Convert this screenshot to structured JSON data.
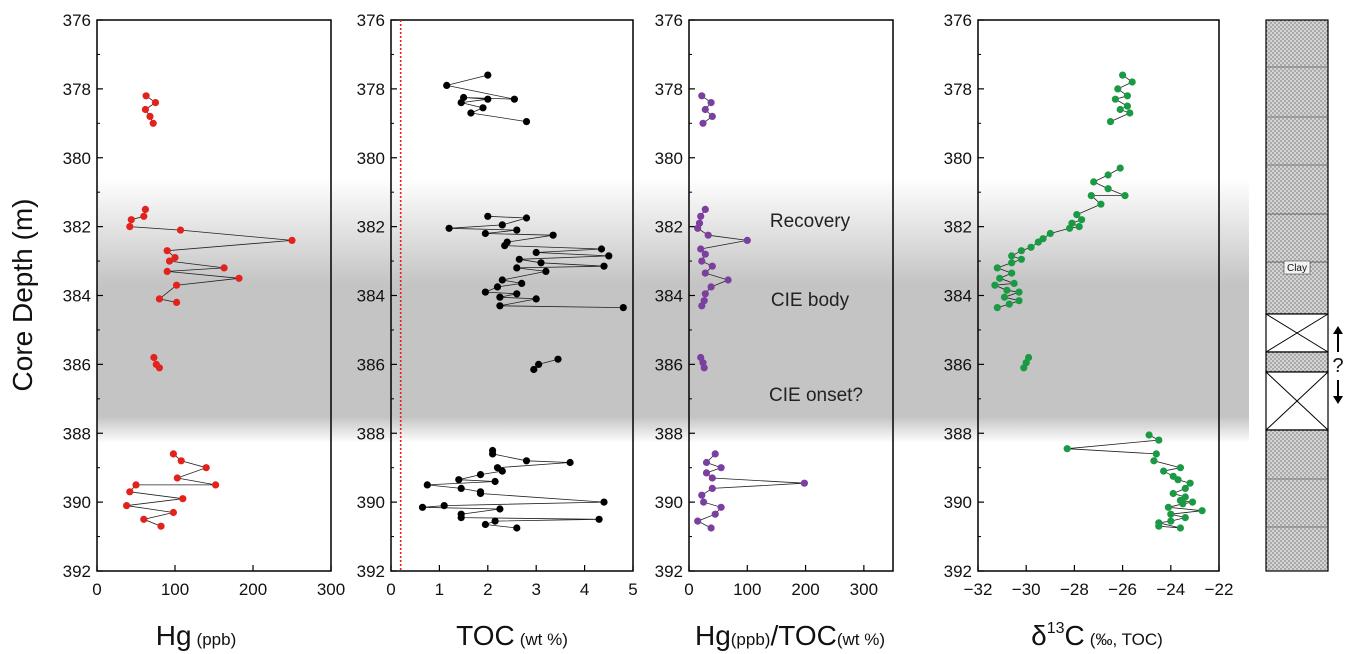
{
  "y_axis_label": "Core Depth (m)",
  "annotations": {
    "recovery": "Recovery",
    "cie_body": "CIE body",
    "cie_onset": "CIE onset?"
  },
  "lithology": {
    "clay_label": "Clay",
    "gap_label": "?"
  },
  "colors": {
    "hg": "#e3221c",
    "toc": "#000000",
    "ratio": "#7b3fa0",
    "d13c": "#1a9a44",
    "toc_reference_line": "#e3221c",
    "cie_shading": "#c4c4c4"
  },
  "chart_data": [
    {
      "type": "line",
      "xlabel_main": "Hg",
      "xlabel_unit": "(ppb)",
      "xlim": [
        0,
        300
      ],
      "ylim": [
        392,
        376
      ],
      "xticks": [
        0,
        100,
        200,
        300
      ],
      "yticks": [
        376,
        378,
        380,
        382,
        384,
        386,
        388,
        390,
        392
      ],
      "color": "#e3221c",
      "series": [
        {
          "points": [
            [
              63,
              378.2
            ],
            [
              75,
              378.4
            ],
            [
              62,
              378.6
            ],
            [
              68,
              378.8
            ],
            [
              72,
              379.0
            ]
          ]
        },
        {
          "points": [
            [
              62,
              381.5
            ],
            [
              60,
              381.7
            ],
            [
              44,
              381.8
            ],
            [
              42,
              382.0
            ],
            [
              107,
              382.1
            ],
            [
              250,
              382.4
            ],
            [
              90,
              382.7
            ],
            [
              100,
              382.9
            ],
            [
              93,
              383.0
            ],
            [
              163,
              383.2
            ],
            [
              90,
              383.3
            ],
            [
              182,
              383.5
            ],
            [
              102,
              383.7
            ],
            [
              80,
              384.1
            ],
            [
              102,
              384.2
            ]
          ]
        },
        {
          "points": [
            [
              73,
              385.8
            ],
            [
              76,
              386.0
            ],
            [
              80,
              386.1
            ]
          ]
        },
        {
          "points": [
            [
              98,
              388.6
            ],
            [
              108,
              388.8
            ],
            [
              140,
              389.0
            ],
            [
              103,
              389.3
            ],
            [
              152,
              389.5
            ],
            [
              50,
              389.5
            ],
            [
              42,
              389.7
            ],
            [
              110,
              389.9
            ],
            [
              38,
              390.1
            ],
            [
              98,
              390.3
            ],
            [
              60,
              390.5
            ],
            [
              82,
              390.7
            ]
          ]
        }
      ]
    },
    {
      "type": "line",
      "xlabel_main": "TOC",
      "xlabel_unit": "(wt %)",
      "xlim": [
        0,
        5
      ],
      "ylim": [
        392,
        376
      ],
      "xticks": [
        0,
        1,
        2,
        3,
        4,
        5
      ],
      "yticks": [
        376,
        378,
        380,
        382,
        384,
        386,
        388,
        390,
        392
      ],
      "color": "#000000",
      "reference_line_x": 0.2,
      "series": [
        {
          "points": [
            [
              2.0,
              377.6
            ],
            [
              1.15,
              377.9
            ],
            [
              2.55,
              378.3
            ],
            [
              1.5,
              378.25
            ],
            [
              2.0,
              378.3
            ],
            [
              1.45,
              378.4
            ],
            [
              1.9,
              378.55
            ],
            [
              1.65,
              378.7
            ],
            [
              2.8,
              378.95
            ]
          ]
        },
        {
          "points": [
            [
              2.0,
              381.7
            ],
            [
              2.8,
              381.75
            ],
            [
              2.3,
              381.95
            ],
            [
              1.2,
              382.05
            ],
            [
              2.6,
              382.1
            ],
            [
              1.95,
              382.2
            ],
            [
              3.35,
              382.25
            ],
            [
              2.4,
              382.45
            ],
            [
              2.35,
              382.55
            ],
            [
              4.35,
              382.65
            ],
            [
              3.0,
              382.75
            ],
            [
              4.5,
              382.85
            ],
            [
              2.65,
              382.95
            ],
            [
              3.1,
              383.05
            ],
            [
              4.4,
              383.15
            ],
            [
              2.6,
              383.2
            ],
            [
              3.2,
              383.3
            ],
            [
              2.3,
              383.55
            ],
            [
              2.7,
              383.65
            ],
            [
              2.2,
              383.75
            ],
            [
              1.95,
              383.9
            ],
            [
              2.6,
              383.95
            ],
            [
              2.25,
              384.05
            ],
            [
              3.0,
              384.1
            ],
            [
              2.25,
              384.3
            ],
            [
              4.8,
              384.35
            ]
          ]
        },
        {
          "points": [
            [
              3.45,
              385.85
            ],
            [
              3.05,
              386.0
            ],
            [
              2.95,
              386.15
            ]
          ]
        },
        {
          "points": [
            [
              2.1,
              388.5
            ],
            [
              2.1,
              388.6
            ],
            [
              2.8,
              388.8
            ],
            [
              3.7,
              388.85
            ],
            [
              2.2,
              389.0
            ],
            [
              2.3,
              389.1
            ],
            [
              1.85,
              389.2
            ],
            [
              1.4,
              389.35
            ],
            [
              2.15,
              389.4
            ],
            [
              0.75,
              389.5
            ],
            [
              1.45,
              389.6
            ],
            [
              1.85,
              389.7
            ],
            [
              1.85,
              389.75
            ],
            [
              4.4,
              390.0
            ],
            [
              1.1,
              390.1
            ],
            [
              0.65,
              390.15
            ],
            [
              2.25,
              390.2
            ],
            [
              1.45,
              390.35
            ],
            [
              1.45,
              390.45
            ],
            [
              4.3,
              390.5
            ],
            [
              2.15,
              390.55
            ],
            [
              1.95,
              390.65
            ],
            [
              2.6,
              390.75
            ]
          ]
        }
      ]
    },
    {
      "type": "line",
      "xlabel_main": "Hg",
      "xlabel_unit_1": "(ppb)",
      "xlabel_main_2": "/TOC",
      "xlabel_unit_2": "(wt %)",
      "xlim": [
        0,
        350
      ],
      "ylim": [
        392,
        376
      ],
      "xticks": [
        0,
        100,
        200,
        300
      ],
      "yticks": [
        376,
        378,
        380,
        382,
        384,
        386,
        388,
        390,
        392
      ],
      "color": "#7b3fa0",
      "series": [
        {
          "points": [
            [
              22,
              378.2
            ],
            [
              38,
              378.4
            ],
            [
              28,
              378.6
            ],
            [
              40,
              378.8
            ],
            [
              24,
              379.0
            ]
          ]
        },
        {
          "points": [
            [
              28,
              381.5
            ],
            [
              20,
              381.7
            ],
            [
              18,
              381.9
            ],
            [
              15,
              382.05
            ],
            [
              33,
              382.25
            ],
            [
              100,
              382.4
            ],
            [
              20,
              382.65
            ],
            [
              28,
              382.8
            ],
            [
              22,
              383.0
            ],
            [
              40,
              383.15
            ],
            [
              28,
              383.35
            ],
            [
              67,
              383.55
            ],
            [
              38,
              383.75
            ],
            [
              28,
              383.95
            ],
            [
              26,
              384.15
            ],
            [
              22,
              384.3
            ]
          ]
        },
        {
          "points": [
            [
              20,
              385.8
            ],
            [
              24,
              385.95
            ],
            [
              26,
              386.1
            ]
          ]
        },
        {
          "points": [
            [
              45,
              388.6
            ],
            [
              30,
              388.85
            ],
            [
              55,
              389.0
            ],
            [
              30,
              389.15
            ],
            [
              40,
              389.3
            ],
            [
              198,
              389.45
            ],
            [
              40,
              389.6
            ],
            [
              22,
              389.8
            ],
            [
              25,
              390.0
            ],
            [
              55,
              390.15
            ],
            [
              45,
              390.35
            ],
            [
              15,
              390.55
            ],
            [
              38,
              390.75
            ]
          ]
        }
      ]
    },
    {
      "type": "line",
      "xlabel_main": "δ",
      "xlabel_sup": "13",
      "xlabel_tail": "C",
      "xlabel_unit": "(‰, TOC)",
      "xlim": [
        -32,
        -22
      ],
      "ylim": [
        392,
        376
      ],
      "xticks": [
        -32,
        -30,
        -28,
        -26,
        -24,
        -22
      ],
      "yticks": [
        376,
        378,
        380,
        382,
        384,
        386,
        388,
        390,
        392
      ],
      "color": "#1a9a44",
      "series": [
        {
          "points": [
            [
              -26.0,
              377.6
            ],
            [
              -25.6,
              377.8
            ],
            [
              -26.2,
              378.0
            ],
            [
              -25.8,
              378.2
            ],
            [
              -26.3,
              378.3
            ],
            [
              -25.8,
              378.5
            ],
            [
              -26.1,
              378.6
            ],
            [
              -25.7,
              378.7
            ],
            [
              -26.5,
              378.95
            ]
          ]
        },
        {
          "points": [
            [
              -26.1,
              380.3
            ],
            [
              -26.6,
              380.5
            ],
            [
              -27.2,
              380.7
            ],
            [
              -26.6,
              380.9
            ],
            [
              -25.9,
              381.1
            ],
            [
              -27.3,
              381.1
            ],
            [
              -26.9,
              381.35
            ],
            [
              -27.9,
              381.65
            ],
            [
              -27.7,
              381.8
            ],
            [
              -28.1,
              381.9
            ],
            [
              -27.8,
              382.0
            ],
            [
              -28.2,
              382.05
            ],
            [
              -29.0,
              382.2
            ],
            [
              -29.3,
              382.35
            ],
            [
              -29.5,
              382.45
            ],
            [
              -29.8,
              382.6
            ],
            [
              -30.2,
              382.7
            ],
            [
              -30.6,
              382.85
            ],
            [
              -30.2,
              382.95
            ],
            [
              -30.6,
              383.05
            ],
            [
              -31.2,
              383.2
            ],
            [
              -30.6,
              383.35
            ],
            [
              -31.1,
              383.5
            ],
            [
              -30.5,
              383.65
            ],
            [
              -31.3,
              383.7
            ],
            [
              -30.8,
              383.85
            ],
            [
              -30.3,
              383.9
            ],
            [
              -30.9,
              384.05
            ],
            [
              -30.3,
              384.15
            ],
            [
              -30.7,
              384.25
            ],
            [
              -31.2,
              384.35
            ]
          ]
        },
        {
          "points": [
            [
              -29.9,
              385.8
            ],
            [
              -30.0,
              385.95
            ],
            [
              -30.1,
              386.1
            ]
          ]
        },
        {
          "points": [
            [
              -24.9,
              388.05
            ],
            [
              -24.5,
              388.2
            ],
            [
              -28.3,
              388.45
            ],
            [
              -24.6,
              388.6
            ],
            [
              -24.7,
              388.8
            ],
            [
              -23.6,
              389.0
            ],
            [
              -24.3,
              389.1
            ],
            [
              -23.9,
              389.25
            ],
            [
              -23.7,
              389.35
            ],
            [
              -23.2,
              389.45
            ],
            [
              -23.4,
              389.6
            ],
            [
              -23.9,
              389.75
            ],
            [
              -23.4,
              389.85
            ],
            [
              -23.6,
              389.95
            ],
            [
              -23.1,
              390.0
            ],
            [
              -23.5,
              390.05
            ],
            [
              -24.1,
              390.15
            ],
            [
              -22.7,
              390.25
            ],
            [
              -24.0,
              390.35
            ],
            [
              -23.4,
              390.45
            ],
            [
              -24.0,
              390.55
            ],
            [
              -24.5,
              390.6
            ],
            [
              -23.6,
              390.75
            ],
            [
              -24.5,
              390.7
            ]
          ]
        }
      ]
    }
  ]
}
